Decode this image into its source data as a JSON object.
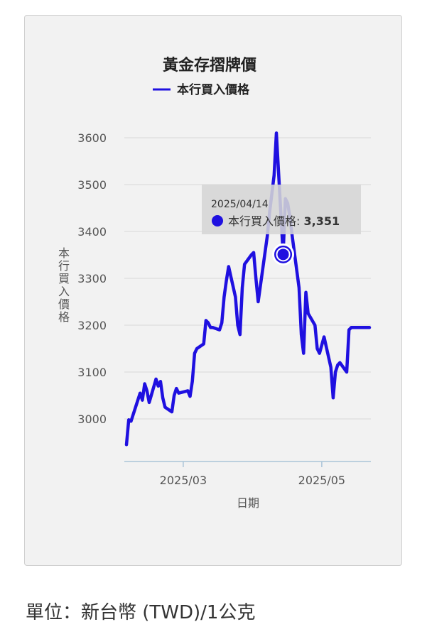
{
  "chart_data": {
    "type": "line",
    "title": "黃金存摺牌價",
    "xlabel": "日期",
    "ylabel": "本行買入價格",
    "series_name": "本行買入價格",
    "ylim": [
      2920,
      3620
    ],
    "yticks": [
      3000,
      3100,
      3200,
      3300,
      3400,
      3500,
      3600
    ],
    "xtick_labels": [
      "2025/03",
      "2025/05"
    ],
    "line_color": "#1f10e0",
    "x": [
      "2025/02/04",
      "2025/02/05",
      "2025/02/06",
      "2025/02/07",
      "2025/02/10",
      "2025/02/11",
      "2025/02/12",
      "2025/02/13",
      "2025/02/14",
      "2025/02/17",
      "2025/02/18",
      "2025/02/19",
      "2025/02/20",
      "2025/02/21",
      "2025/02/24",
      "2025/02/25",
      "2025/02/26",
      "2025/02/27",
      "2025/03/03",
      "2025/03/04",
      "2025/03/05",
      "2025/03/06",
      "2025/03/07",
      "2025/03/10",
      "2025/03/11",
      "2025/03/12",
      "2025/03/13",
      "2025/03/14",
      "2025/03/17",
      "2025/03/18",
      "2025/03/19",
      "2025/03/20",
      "2025/03/21",
      "2025/03/24",
      "2025/03/25",
      "2025/03/26",
      "2025/03/27",
      "2025/03/28",
      "2025/03/31",
      "2025/04/01",
      "2025/04/02",
      "2025/04/03",
      "2025/04/07",
      "2025/04/08",
      "2025/04/09",
      "2025/04/10",
      "2025/04/11",
      "2025/04/14",
      "2025/04/15",
      "2025/04/16",
      "2025/04/17",
      "2025/04/18",
      "2025/04/21",
      "2025/04/22",
      "2025/04/23",
      "2025/04/24",
      "2025/04/25",
      "2025/04/28",
      "2025/04/29",
      "2025/04/30",
      "2025/05/02",
      "2025/05/05",
      "2025/05/06",
      "2025/05/07",
      "2025/05/08",
      "2025/05/09",
      "2025/05/12",
      "2025/05/13",
      "2025/05/14",
      "2025/05/15",
      "2025/05/16",
      "2025/05/19",
      "2025/05/20",
      "2025/05/21",
      "2025/05/22"
    ],
    "values": [
      2945,
      2998,
      2995,
      3010,
      3055,
      3040,
      3075,
      3060,
      3035,
      3085,
      3070,
      3080,
      3045,
      3025,
      3015,
      3050,
      3065,
      3055,
      3060,
      3048,
      3080,
      3140,
      3150,
      3160,
      3210,
      3205,
      3195,
      3195,
      3190,
      3205,
      3260,
      3295,
      3325,
      3260,
      3200,
      3180,
      3280,
      3330,
      3350,
      3355,
      3300,
      3250,
      3390,
      3440,
      3480,
      3520,
      3610,
      3351,
      3470,
      3460,
      3430,
      3390,
      3280,
      3180,
      3140,
      3270,
      3225,
      3200,
      3150,
      3140,
      3175,
      3110,
      3045,
      3100,
      3115,
      3120,
      3100,
      3190,
      3195,
      3195,
      3195,
      3195,
      3195,
      3195,
      3195
    ],
    "tooltip": {
      "date": "2025/04/14",
      "label": "本行買入價格",
      "value": "3,351"
    }
  },
  "footer": {
    "unit_text": "單位：新台幣 (TWD)/1公克"
  }
}
